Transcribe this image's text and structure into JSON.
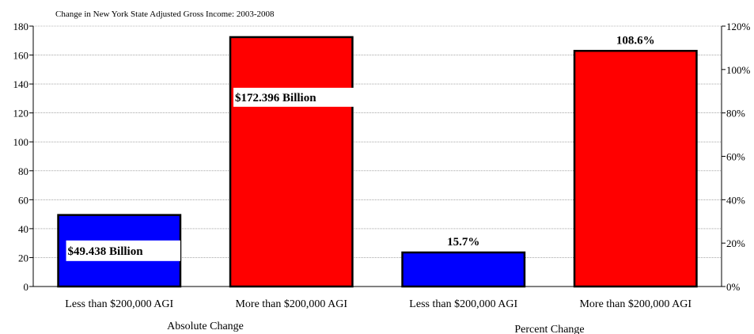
{
  "chart_data": {
    "type": "bar",
    "title": "Change in New York State Adjusted Gross Income:  2003-2008",
    "left_axis": {
      "ylim": [
        0,
        180
      ],
      "ticks": [
        0,
        20,
        40,
        60,
        80,
        100,
        120,
        140,
        160,
        180
      ],
      "tick_labels": [
        "0",
        "20",
        "40",
        "60",
        "80",
        "100",
        "120",
        "140",
        "160",
        "180"
      ]
    },
    "right_axis": {
      "ylim": [
        0,
        120
      ],
      "ticks": [
        0,
        20,
        40,
        60,
        80,
        100,
        120
      ],
      "tick_labels": [
        "0%",
        "20%",
        "40%",
        "60%",
        "80%",
        "100%",
        "120%"
      ]
    },
    "grid": true,
    "groups": [
      {
        "label": "Absolute Change",
        "axis": "left",
        "bars": [
          {
            "category": "Less than $200,000 AGI",
            "value": 49.438,
            "data_label": "$49.438 Billion",
            "color": "#0000FF"
          },
          {
            "category": "More than $200,000 AGI",
            "value": 172.396,
            "data_label": "$172.396 Billion",
            "color": "#FF0000"
          }
        ]
      },
      {
        "label": "Percent Change",
        "axis": "right",
        "bars": [
          {
            "category": "Less than $200,000 AGI",
            "value": 15.7,
            "data_label": "15.7%",
            "color": "#0000FF"
          },
          {
            "category": "More than $200,000 AGI",
            "value": 108.6,
            "data_label": "108.6%",
            "color": "#FF0000"
          }
        ]
      }
    ]
  }
}
